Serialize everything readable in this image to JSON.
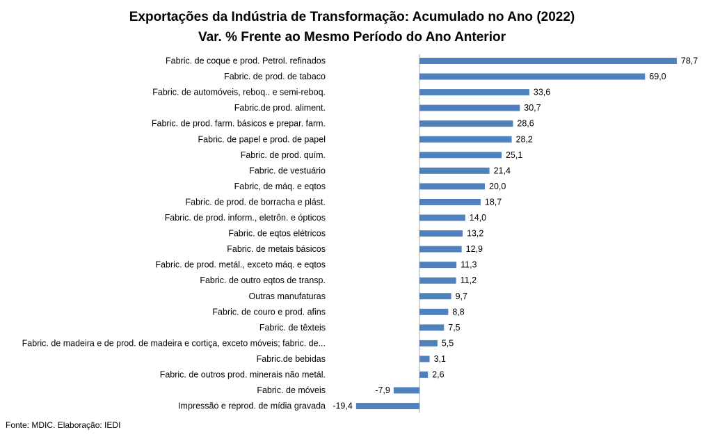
{
  "chart_data": {
    "type": "bar",
    "orientation": "horizontal",
    "title": "Exportações da Indústria de Transformação: Acumulado no Ano (2022)",
    "subtitle": "Var. % Frente ao Mesmo Período do Ano Anterior",
    "xlabel": "",
    "ylabel": "",
    "grid": false,
    "legend": "none",
    "bar_color": "#4F81BD",
    "categories": [
      "Fabric. de coque e prod. Petrol. refinados",
      "Fabric. de prod. de tabaco",
      "Fabric. de automóveis, reboq.. e semi-reboq.",
      "Fabric.de prod. aliment.",
      "Fabric. de prod. farm. básicos e prepar. farm.",
      "Fabric. de papel e prod. de papel",
      "Fabric. de prod. quím.",
      "Fabric. de vestuário",
      "Fabric, de máq. e eqtos",
      "Fabric. de prod. de borracha e plást.",
      "Fabric. de prod. inform., eletrôn. e ópticos",
      "Fabric. de eqtos elétricos",
      "Fabric. de metais básicos",
      "Fabric. de prod. metál., exceto máq. e eqtos",
      "Fabric. de outro eqtos de transp.",
      "Outras manufaturas",
      "Fabric. de couro e prod. afins",
      "Fabric. de têxteis",
      "Fabric. de madeira e de prod. de madeira e cortiça, exceto móveis; fabric. de...",
      "Fabric.de bebidas",
      "Fabric. de outros prod. minerais não metál.",
      "Fabric. de móveis",
      "Impressão e reprod. de mídia gravada"
    ],
    "values": [
      78.7,
      69.0,
      33.6,
      30.7,
      28.6,
      28.2,
      25.1,
      21.4,
      20.0,
      18.7,
      14.0,
      13.2,
      12.9,
      11.3,
      11.2,
      9.7,
      8.8,
      7.5,
      5.5,
      3.1,
      2.6,
      -7.9,
      -19.4
    ],
    "value_labels": [
      "78,7",
      "69,0",
      "33,6",
      "30,7",
      "28,6",
      "28,2",
      "25,1",
      "21,4",
      "20,0",
      "18,7",
      "14,0",
      "13,2",
      "12,9",
      "11,3",
      "11,2",
      "9,7",
      "8,8",
      "7,5",
      "5,5",
      "3,1",
      "2,6",
      "-7,9",
      "-19,4"
    ]
  },
  "source": "Fonte: MDIC. Elaboração: IEDI"
}
